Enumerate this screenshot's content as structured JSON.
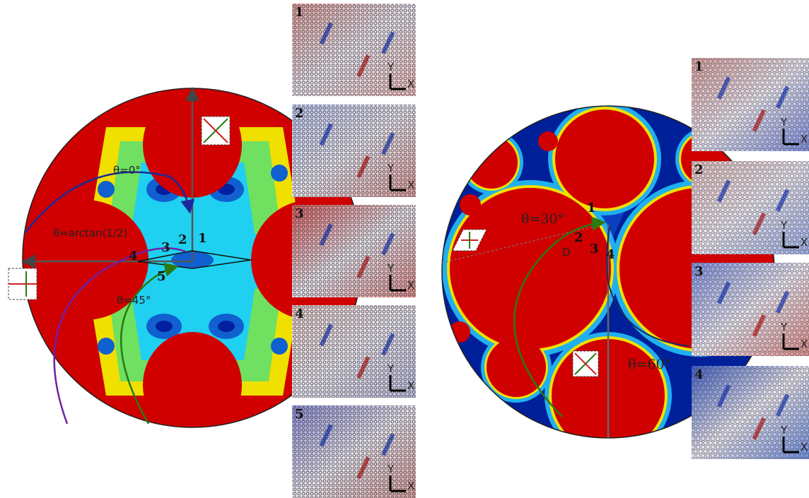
{
  "left": {
    "angles": [
      "θ=0°",
      "θ=arctan(1/2)",
      "θ=45°"
    ],
    "points": [
      "1",
      "2",
      "3",
      "4",
      "5"
    ],
    "panels": [
      "1",
      "2",
      "3",
      "4",
      "5"
    ]
  },
  "right": {
    "angles": [
      "θ=30°",
      "θ=60°"
    ],
    "distance": "D",
    "points": [
      "1",
      "2",
      "3",
      "4"
    ],
    "panels": [
      "1",
      "2",
      "3",
      "4"
    ]
  },
  "axes": {
    "x": "X",
    "y": "Y"
  }
}
